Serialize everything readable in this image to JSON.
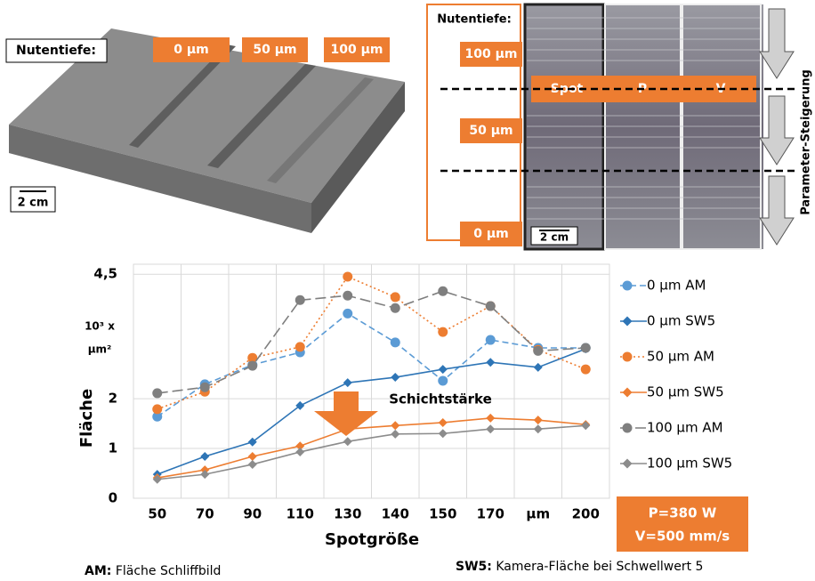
{
  "left_panel": {
    "label": "Nutentiefe:",
    "depths": [
      "0 µm",
      "50 µm",
      "100 µm"
    ],
    "scale": "2 cm"
  },
  "right_panel": {
    "label": "Nutentiefe:",
    "depths": [
      "100 µm",
      "50 µm",
      "0 µm"
    ],
    "params": [
      "Spot",
      "P",
      "V"
    ],
    "scale": "2 cm",
    "side_label": "Parameter-Steigerung"
  },
  "chart_data": {
    "type": "line",
    "x_label": "Spotgröße",
    "y_label": "Fläche",
    "y_unit": [
      "10³ x",
      "µm²"
    ],
    "categories": [
      "50",
      "70",
      "90",
      "110",
      "130",
      "140",
      "150",
      "170",
      "µm",
      "200"
    ],
    "ylim": [
      0,
      4.7
    ],
    "yticks": [
      0,
      1,
      2,
      {
        "value": 4.5,
        "label": "4,5"
      }
    ],
    "grid": true,
    "legend": "right",
    "series": [
      {
        "name": "0 µm AM",
        "color": "#5b9bd5",
        "marker": "circle",
        "dash": "dashed",
        "values": [
          1.64,
          2.29,
          2.68,
          2.93,
          3.71,
          3.13,
          2.36,
          3.18,
          3.02,
          3.02
        ]
      },
      {
        "name": "0 µm SW5",
        "color": "#2e75b6",
        "marker": "diamond",
        "dash": "solid",
        "values": [
          0.48,
          0.84,
          1.13,
          1.86,
          2.32,
          2.43,
          2.59,
          2.73,
          2.63,
          3.0
        ]
      },
      {
        "name": "50 µm AM",
        "color": "#ed7d31",
        "marker": "circle",
        "dash": "dotted",
        "values": [
          1.79,
          2.14,
          2.82,
          3.04,
          4.45,
          4.04,
          3.34,
          3.86,
          2.98,
          2.59
        ]
      },
      {
        "name": "50 µm SW5",
        "color": "#ed7d31",
        "marker": "diamond",
        "dash": "solid",
        "values": [
          0.41,
          0.57,
          0.84,
          1.05,
          1.39,
          1.46,
          1.52,
          1.61,
          1.57,
          1.48
        ]
      },
      {
        "name": "100 µm AM",
        "color": "#7f7f7f",
        "marker": "circle",
        "dash": "longdash",
        "values": [
          2.11,
          2.23,
          2.66,
          3.98,
          4.07,
          3.82,
          4.16,
          3.86,
          2.96,
          3.02
        ]
      },
      {
        "name": "100 µm SW5",
        "color": "#8c8c8c",
        "marker": "diamond",
        "dash": "solid",
        "values": [
          0.38,
          0.48,
          0.68,
          0.93,
          1.14,
          1.29,
          1.3,
          1.39,
          1.39,
          1.46
        ]
      }
    ],
    "annotation": "Schichtstärke",
    "info": [
      "P=380 W",
      "V=500 mm/s"
    ]
  },
  "footer": {
    "am_key": "AM:",
    "am_text": "Fläche Schliffbild",
    "sw5_key": "SW5:",
    "sw5_text": "Kamera-Fläche bei Schwellwert 5"
  }
}
